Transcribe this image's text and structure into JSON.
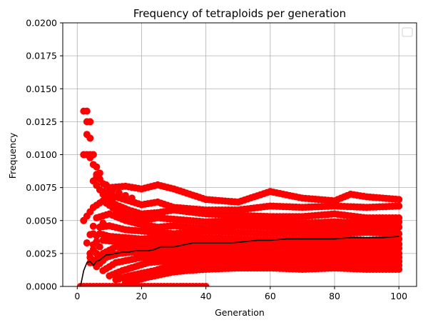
{
  "chart_data": {
    "type": "scatter",
    "title": "Frequency of tetraploids per generation",
    "xlabel": "Generation",
    "ylabel": "Frequency",
    "xlim": [
      -4.5,
      105.5
    ],
    "ylim": [
      0,
      0.02
    ],
    "x_ticks": [
      0,
      20,
      40,
      60,
      80,
      100
    ],
    "x_tick_labels": [
      "0",
      "20",
      "40",
      "60",
      "80",
      "100"
    ],
    "y_ticks": [
      0,
      0.0025,
      0.005,
      0.0075,
      0.01,
      0.0125,
      0.015,
      0.0175,
      0.02
    ],
    "y_tick_labels": [
      "0.0000",
      "0.0025",
      "0.0050",
      "0.0075",
      "0.0100",
      "0.0125",
      "0.0150",
      "0.0175",
      "0.0200"
    ],
    "grid": true,
    "legend": {
      "placement": "top-right",
      "entries": []
    },
    "series": [
      {
        "kind": "scatter",
        "color": "#ff0000",
        "note_upper_bands": "approximate replicate trajectories; points at every generation 1-100",
        "trajectories": [
          {
            "x": [
              2,
              4,
              6,
              8,
              10,
              15,
              20,
              25,
              30,
              40,
              50,
              60,
              70,
              80,
              85,
              90,
              100
            ],
            "y": [
              0.01,
              0.01,
              0.0085,
              0.0078,
              0.0075,
              0.0076,
              0.0074,
              0.0077,
              0.0074,
              0.0066,
              0.0064,
              0.0072,
              0.0067,
              0.0065,
              0.007,
              0.0068,
              0.0066
            ]
          },
          {
            "x": [
              3,
              5,
              8,
              12,
              16,
              20,
              25,
              30,
              40,
              50,
              60,
              70,
              80,
              90,
              100
            ],
            "y": [
              0.0125,
              0.01,
              0.0072,
              0.0068,
              0.0065,
              0.0062,
              0.0064,
              0.006,
              0.0058,
              0.0058,
              0.0061,
              0.006,
              0.0061,
              0.006,
              0.0061
            ]
          },
          {
            "x": [
              2,
              5,
              8,
              12,
              16,
              20,
              25,
              30,
              40,
              50,
              60,
              70,
              80,
              90,
              100
            ],
            "y": [
              0.0133,
              0.008,
              0.007,
              0.0062,
              0.0058,
              0.0055,
              0.0056,
              0.0058,
              0.0055,
              0.0054,
              0.0053,
              0.0053,
              0.0055,
              0.0052,
              0.0052
            ]
          },
          {
            "x": [
              2,
              5,
              8,
              12,
              16,
              20,
              25,
              30,
              40,
              50,
              60,
              70,
              80,
              90,
              100
            ],
            "y": [
              0.005,
              0.006,
              0.0065,
              0.0058,
              0.0053,
              0.005,
              0.0052,
              0.0051,
              0.0049,
              0.005,
              0.0049,
              0.0048,
              0.0049,
              0.0048,
              0.0049
            ]
          },
          {
            "x": [
              3,
              6,
              10,
              15,
              20,
              25,
              30,
              40,
              50,
              60,
              70,
              80,
              90,
              100
            ],
            "y": [
              0.0033,
              0.0052,
              0.0055,
              0.005,
              0.0047,
              0.0045,
              0.0046,
              0.0044,
              0.0046,
              0.0045,
              0.0043,
              0.0045,
              0.0044,
              0.0045
            ]
          },
          {
            "x": [
              4,
              7,
              10,
              15,
              20,
              25,
              30,
              40,
              50,
              60,
              70,
              80,
              90,
              100
            ],
            "y": [
              0.0025,
              0.0045,
              0.0046,
              0.0043,
              0.0042,
              0.0041,
              0.004,
              0.0042,
              0.0041,
              0.004,
              0.0041,
              0.004,
              0.0041,
              0.004
            ]
          },
          {
            "x": [
              4,
              7,
              10,
              15,
              20,
              25,
              30,
              40,
              50,
              60,
              70,
              80,
              90,
              100
            ],
            "y": [
              0.0022,
              0.004,
              0.0038,
              0.0037,
              0.0036,
              0.0037,
              0.0036,
              0.0037,
              0.0036,
              0.0035,
              0.0036,
              0.0036,
              0.0035,
              0.0036
            ]
          },
          {
            "x": [
              5,
              8,
              12,
              16,
              20,
              25,
              30,
              40,
              50,
              60,
              70,
              80,
              90,
              100
            ],
            "y": [
              0.002,
              0.0035,
              0.0034,
              0.0033,
              0.0032,
              0.0033,
              0.0032,
              0.0033,
              0.0032,
              0.0031,
              0.0032,
              0.0033,
              0.0032,
              0.0032
            ]
          },
          {
            "x": [
              5,
              8,
              12,
              16,
              20,
              25,
              30,
              40,
              50,
              60,
              70,
              80,
              90,
              100
            ],
            "y": [
              0.0018,
              0.0025,
              0.003,
              0.0029,
              0.0028,
              0.0029,
              0.0028,
              0.0029,
              0.0028,
              0.0029,
              0.0028,
              0.0029,
              0.0028,
              0.0029
            ]
          },
          {
            "x": [
              6,
              9,
              13,
              17,
              20,
              25,
              30,
              40,
              50,
              60,
              70,
              80,
              90,
              100
            ],
            "y": [
              0.0015,
              0.0022,
              0.0025,
              0.0026,
              0.0025,
              0.0026,
              0.0025,
              0.0026,
              0.0025,
              0.0026,
              0.0025,
              0.0026,
              0.0025,
              0.0025
            ]
          },
          {
            "x": [
              8,
              12,
              16,
              20,
              25,
              30,
              40,
              50,
              60,
              70,
              80,
              90,
              100
            ],
            "y": [
              0.0012,
              0.0018,
              0.002,
              0.0022,
              0.0022,
              0.0023,
              0.0023,
              0.0022,
              0.0023,
              0.0022,
              0.0023,
              0.0022,
              0.0022
            ]
          },
          {
            "x": [
              10,
              14,
              18,
              22,
              26,
              30,
              40,
              50,
              60,
              70,
              80,
              90,
              100
            ],
            "y": [
              0.0008,
              0.0012,
              0.0015,
              0.0018,
              0.0019,
              0.0019,
              0.002,
              0.0019,
              0.002,
              0.0019,
              0.0019,
              0.002,
              0.0019
            ]
          },
          {
            "x": [
              12,
              16,
              20,
              24,
              28,
              32,
              40,
              50,
              60,
              70,
              80,
              90,
              100
            ],
            "y": [
              0.0005,
              0.0008,
              0.001,
              0.0012,
              0.0015,
              0.0016,
              0.0017,
              0.0017,
              0.0016,
              0.0017,
              0.0016,
              0.0017,
              0.0016
            ]
          },
          {
            "x": [
              15,
              19,
              22,
              26,
              30,
              34,
              40,
              50,
              60,
              70,
              80,
              90,
              100
            ],
            "y": [
              0.0003,
              0.0005,
              0.0007,
              0.0009,
              0.0011,
              0.0012,
              0.0013,
              0.0014,
              0.0014,
              0.0013,
              0.0014,
              0.0013,
              0.0013
            ]
          }
        ],
        "clusters": [
          {
            "x": 3,
            "y": 0.0133
          },
          {
            "x": 4,
            "y": 0.0125
          },
          {
            "x": 3,
            "y": 0.01
          },
          {
            "x": 4,
            "y": 0.01
          },
          {
            "x": 5,
            "y": 0.01
          },
          {
            "x": 2,
            "y": 0.01
          },
          {
            "x": 5,
            "y": 0.008
          },
          {
            "x": 6,
            "y": 0.0083
          },
          {
            "x": 7,
            "y": 0.0086
          },
          {
            "x": 2,
            "y": 0.005
          },
          {
            "x": 3,
            "y": 0.0033
          },
          {
            "x": 4,
            "y": 0.0025
          },
          {
            "x": 4,
            "y": 0.0018
          },
          {
            "x": 5,
            "y": 0.004
          },
          {
            "x": 7,
            "y": 0.0045
          },
          {
            "x": 8,
            "y": 0.0048
          },
          {
            "x": 9,
            "y": 0.0077
          },
          {
            "x": 11,
            "y": 0.0073
          },
          {
            "x": 13,
            "y": 0.0071
          },
          {
            "x": 15,
            "y": 0.0069
          },
          {
            "x": 17,
            "y": 0.0067
          },
          {
            "x": 10,
            "y": 0.0063
          },
          {
            "x": 12,
            "y": 0.006
          }
        ],
        "zero_points_x_range": [
          1,
          40
        ],
        "zero_point_y": 0.0
      },
      {
        "kind": "line",
        "color": "#000000",
        "x": [
          1,
          2,
          3,
          4,
          5,
          6,
          7,
          8,
          9,
          10,
          12,
          14,
          16,
          18,
          20,
          22,
          24,
          26,
          28,
          30,
          32,
          34,
          36,
          38,
          40,
          44,
          48,
          52,
          56,
          60,
          65,
          70,
          75,
          80,
          85,
          90,
          95,
          100
        ],
        "y": [
          0.0,
          0.0012,
          0.0018,
          0.0019,
          0.0016,
          0.0019,
          0.002,
          0.0022,
          0.0024,
          0.0024,
          0.0025,
          0.0026,
          0.0026,
          0.0027,
          0.0027,
          0.0027,
          0.0028,
          0.003,
          0.003,
          0.003,
          0.0031,
          0.0032,
          0.0033,
          0.0033,
          0.0033,
          0.0033,
          0.0033,
          0.0034,
          0.0035,
          0.0035,
          0.0036,
          0.0036,
          0.0036,
          0.0036,
          0.0037,
          0.0037,
          0.0037,
          0.0038
        ]
      }
    ]
  }
}
